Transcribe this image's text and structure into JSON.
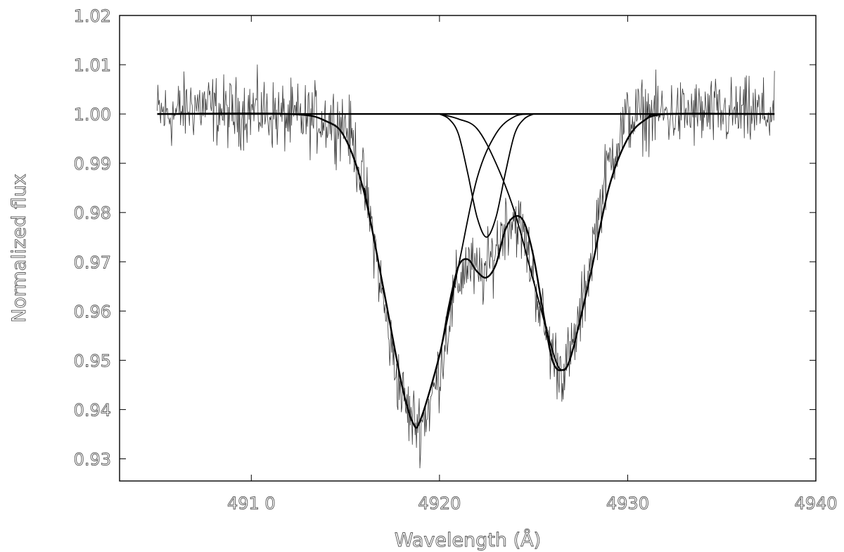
{
  "chart_data": {
    "type": "line",
    "title": "",
    "xlabel": "Wavelength (Å)",
    "ylabel": "Normalized flux",
    "xlim": [
      4903.0,
      4940.0
    ],
    "ylim": [
      0.9255,
      1.02
    ],
    "x_ticks": [
      4910,
      4920,
      4930,
      4940
    ],
    "x_tick_labels": [
      "491 0",
      "4920",
      "4930",
      "4940"
    ],
    "y_ticks": [
      0.93,
      0.94,
      0.95,
      0.96,
      0.97,
      0.98,
      0.99,
      1.0,
      1.01,
      1.02
    ],
    "y_tick_labels": [
      "0.93",
      "0.94",
      "0.95",
      "0.96",
      "0.97",
      "0.98",
      "0.99",
      "1.00",
      "1.01",
      "1.02"
    ],
    "grid": false,
    "legend": "none",
    "series": [
      {
        "kind": "observed-noisy",
        "x": [
          4905.0,
          4906.0,
          4907.0,
          4908.0,
          4909.0,
          4910.0,
          4911.0,
          4912.0,
          4913.0,
          4914.0,
          4915.0,
          4915.5,
          4916.0,
          4916.5,
          4917.0,
          4917.5,
          4918.0,
          4918.5,
          4919.0,
          4919.5,
          4920.0,
          4920.5,
          4921.0,
          4921.5,
          4922.0,
          4922.5,
          4923.0,
          4923.5,
          4924.0,
          4924.5,
          4925.0,
          4925.5,
          4926.0,
          4926.5,
          4927.0,
          4927.5,
          4928.0,
          4928.5,
          4929.0,
          4929.5,
          4930.0,
          4931.0,
          4932.0,
          4933.0,
          4934.0,
          4935.0,
          4936.0,
          4937.0,
          4937.8
        ],
        "y": [
          1.0,
          1.0,
          1.002,
          1.001,
          1.0,
          1.001,
          1.0,
          0.999,
          0.999,
          0.999,
          0.998,
          0.993,
          0.985,
          0.975,
          0.962,
          0.951,
          0.943,
          0.938,
          0.937,
          0.941,
          0.948,
          0.958,
          0.966,
          0.97,
          0.967,
          0.968,
          0.973,
          0.978,
          0.979,
          0.975,
          0.967,
          0.958,
          0.951,
          0.948,
          0.951,
          0.959,
          0.97,
          0.981,
          0.99,
          0.995,
          0.999,
          1.0,
          1.0,
          1.0,
          1.0,
          1.0,
          1.0,
          1.0,
          1.0
        ],
        "noise_amplitude": 0.0045
      },
      {
        "kind": "fit-total",
        "x": [
          4905.0,
          4912.0,
          4914.0,
          4915.0,
          4916.0,
          4917.0,
          4918.0,
          4918.6,
          4919.0,
          4920.0,
          4920.5,
          4921.0,
          4921.5,
          4922.0,
          4922.5,
          4923.0,
          4923.5,
          4924.0,
          4924.5,
          4925.0,
          4925.5,
          4926.0,
          4926.5,
          4927.0,
          4928.0,
          4929.0,
          4930.0,
          4931.0,
          4932.0,
          4937.8
        ],
        "y": [
          1.0,
          1.0,
          0.9985,
          0.995,
          0.984,
          0.965,
          0.945,
          0.9372,
          0.938,
          0.951,
          0.961,
          0.969,
          0.9705,
          0.968,
          0.9668,
          0.9695,
          0.9765,
          0.9792,
          0.978,
          0.971,
          0.96,
          0.95,
          0.948,
          0.951,
          0.967,
          0.985,
          0.995,
          0.999,
          1.0,
          1.0
        ]
      },
      {
        "kind": "component",
        "x": [
          4920.0,
          4920.5,
          4921.0,
          4921.5,
          4922.0,
          4922.5,
          4923.0,
          4923.5,
          4924.0,
          4924.5,
          4925.0
        ],
        "y": [
          1.0,
          0.999,
          0.996,
          0.988,
          0.979,
          0.975,
          0.979,
          0.988,
          0.996,
          0.999,
          1.0
        ]
      },
      {
        "kind": "component",
        "x": [
          4916.0,
          4917.0,
          4918.0,
          4918.6,
          4919.0,
          4920.0,
          4921.0,
          4922.0,
          4923.0,
          4924.0,
          4925.0
        ],
        "y": [
          0.985,
          0.965,
          0.945,
          0.9372,
          0.938,
          0.951,
          0.969,
          0.987,
          0.996,
          0.9995,
          1.0
        ]
      },
      {
        "kind": "component",
        "x": [
          4920.0,
          4921.0,
          4922.0,
          4923.0,
          4924.0,
          4925.0,
          4926.0,
          4926.5,
          4927.0,
          4928.0,
          4929.0,
          4930.0,
          4931.0,
          4932.0
        ],
        "y": [
          1.0,
          0.999,
          0.997,
          0.99,
          0.98,
          0.966,
          0.952,
          0.948,
          0.951,
          0.967,
          0.985,
          0.995,
          0.999,
          1.0
        ]
      },
      {
        "kind": "continuum",
        "x": [
          4905.0,
          4937.8
        ],
        "y": [
          1.0,
          1.0
        ]
      }
    ]
  }
}
